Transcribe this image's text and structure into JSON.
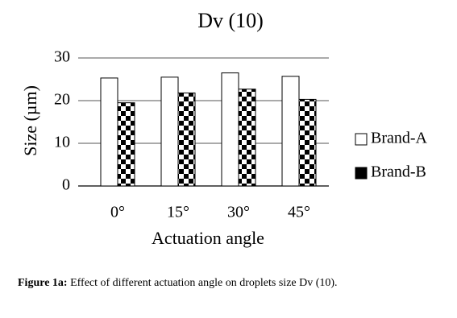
{
  "chart_data": {
    "type": "bar",
    "title": "Dv (10)",
    "x_label": "Actuation angle",
    "y_label": "Size (µm)",
    "categories": [
      "0°",
      "15°",
      "30°",
      "45°"
    ],
    "series": [
      {
        "name": "Brand-A",
        "color": "#ffffff",
        "values": [
          25.3,
          25.5,
          26.5,
          25.7
        ]
      },
      {
        "name": "Brand-B",
        "color": "#000000",
        "values": [
          19.5,
          21.8,
          22.7,
          20.3
        ]
      }
    ],
    "ylim": [
      0,
      30
    ],
    "yticks": [
      0,
      10,
      20,
      30
    ],
    "grid": true,
    "legend": "right"
  },
  "caption": {
    "label": "Figure 1a:",
    "text": "Effect of different actuation angle on droplets size Dv (10)."
  }
}
